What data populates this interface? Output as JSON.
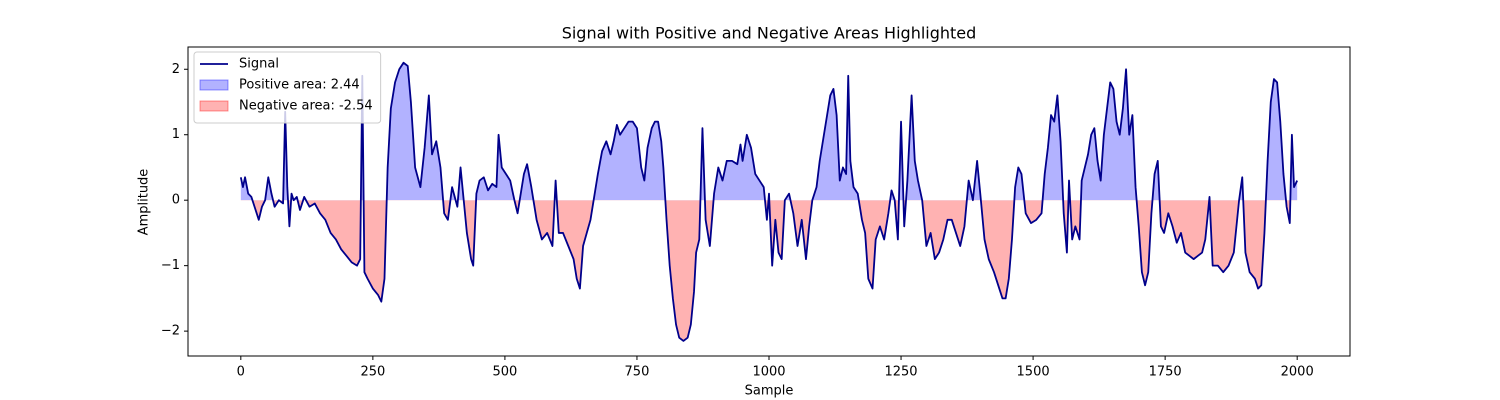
{
  "chart_data": {
    "type": "line",
    "title": "Signal with Positive and Negative Areas Highlighted",
    "xlabel": "Sample",
    "ylabel": "Amplitude",
    "x": [
      0,
      4,
      8,
      14,
      20,
      28,
      34,
      40,
      46,
      52,
      58,
      64,
      72,
      80,
      84,
      88,
      92,
      96,
      100,
      106,
      112,
      120,
      130,
      140,
      150,
      160,
      170,
      180,
      190,
      200,
      210,
      220,
      226,
      230,
      234,
      240,
      250,
      260,
      266,
      272,
      278,
      284,
      292,
      300,
      308,
      316,
      322,
      330,
      340,
      348,
      356,
      362,
      370,
      378,
      385,
      392,
      400,
      410,
      416,
      422,
      428,
      436,
      440,
      446,
      452,
      460,
      468,
      476,
      484,
      488,
      494,
      502,
      510,
      518,
      524,
      530,
      536,
      542,
      550,
      560,
      570,
      580,
      590,
      596,
      602,
      610,
      620,
      630,
      636,
      642,
      648,
      655,
      662,
      668,
      676,
      684,
      692,
      700,
      706,
      712,
      718,
      726,
      734,
      742,
      750,
      758,
      764,
      770,
      778,
      784,
      790,
      796,
      800,
      806,
      812,
      818,
      824,
      830,
      838,
      846,
      852,
      858,
      862,
      868,
      874,
      880,
      888,
      896,
      904,
      912,
      920,
      930,
      940,
      946,
      950,
      958,
      966,
      974,
      982,
      990,
      996,
      1000,
      1006,
      1012,
      1018,
      1024,
      1030,
      1038,
      1046,
      1054,
      1062,
      1070,
      1076,
      1082,
      1090,
      1096,
      1102,
      1110,
      1116,
      1122,
      1128,
      1134,
      1140,
      1146,
      1150,
      1154,
      1160,
      1168,
      1176,
      1182,
      1188,
      1196,
      1202,
      1210,
      1218,
      1226,
      1232,
      1238,
      1244,
      1250,
      1256,
      1262,
      1270,
      1276,
      1282,
      1290,
      1298,
      1306,
      1314,
      1322,
      1330,
      1338,
      1346,
      1354,
      1362,
      1370,
      1378,
      1386,
      1394,
      1400,
      1408,
      1416,
      1426,
      1434,
      1442,
      1448,
      1454,
      1460,
      1466,
      1472,
      1478,
      1486,
      1496,
      1506,
      1516,
      1522,
      1528,
      1534,
      1540,
      1546,
      1552,
      1558,
      1564,
      1568,
      1574,
      1580,
      1588,
      1592,
      1598,
      1604,
      1610,
      1616,
      1622,
      1628,
      1634,
      1640,
      1646,
      1652,
      1658,
      1664,
      1670,
      1676,
      1682,
      1688,
      1694,
      1700,
      1706,
      1712,
      1718,
      1724,
      1730,
      1736,
      1742,
      1748,
      1756,
      1764,
      1772,
      1780,
      1788,
      1796,
      1804,
      1812,
      1820,
      1826,
      1834,
      1840,
      1850,
      1860,
      1870,
      1880,
      1890,
      1896,
      1902,
      1910,
      1920,
      1926,
      1932,
      1938,
      1944,
      1950,
      1956,
      1962,
      1968,
      1974,
      1980,
      1986,
      1990,
      1994,
      2000
    ],
    "series": [
      {
        "name": "Signal",
        "color": "#00008b",
        "values": [
          0.35,
          0.2,
          0.35,
          0.1,
          0.05,
          -0.15,
          -0.3,
          -0.1,
          0,
          0.35,
          0.1,
          -0.1,
          0,
          -0.05,
          1.35,
          0.2,
          -0.4,
          0.1,
          0,
          0.05,
          -0.15,
          0.05,
          -0.1,
          -0.05,
          -0.2,
          -0.3,
          -0.5,
          -0.6,
          -0.75,
          -0.85,
          -0.95,
          -1,
          -0.9,
          1.9,
          -1.1,
          -1.2,
          -1.35,
          -1.45,
          -1.55,
          -1.2,
          0.5,
          1.4,
          1.8,
          2,
          2.1,
          2.05,
          1.5,
          0.5,
          0.2,
          0.8,
          1.6,
          0.7,
          0.9,
          0.5,
          -0.2,
          -0.3,
          0.2,
          -0.1,
          0.5,
          0,
          -0.5,
          -0.9,
          -1,
          0.1,
          0.3,
          0.35,
          0.15,
          0.25,
          0.2,
          1,
          0.5,
          0.4,
          0.3,
          0,
          -0.2,
          0.1,
          0.4,
          0.55,
          0.2,
          -0.3,
          -0.6,
          -0.5,
          -0.7,
          0.3,
          -0.5,
          -0.5,
          -0.7,
          -0.9,
          -1.2,
          -1.35,
          -0.7,
          -0.5,
          -0.3,
          0,
          0.4,
          0.75,
          0.9,
          0.7,
          0.9,
          1.15,
          1,
          1.1,
          1.2,
          1.2,
          1.1,
          0.5,
          0.3,
          0.8,
          1.1,
          1.2,
          1.2,
          0.9,
          0.5,
          -0.3,
          -1,
          -1.5,
          -1.9,
          -2.1,
          -2.15,
          -2.1,
          -1.9,
          -1.4,
          -0.8,
          -0.6,
          1.1,
          -0.3,
          -0.7,
          0.1,
          0.5,
          0.3,
          0.6,
          0.6,
          0.55,
          0.85,
          0.6,
          1,
          0.8,
          0.4,
          0.3,
          0.2,
          -0.3,
          0.1,
          -1,
          -0.3,
          -0.8,
          -0.9,
          0,
          0.1,
          -0.2,
          -0.7,
          -0.3,
          -0.9,
          -0.4,
          0,
          0.2,
          0.6,
          0.9,
          1.3,
          1.6,
          1.7,
          1.3,
          0.3,
          0.5,
          0.4,
          1.9,
          0.6,
          0.2,
          0.1,
          -0.3,
          -0.5,
          -1.2,
          -1.35,
          -0.6,
          -0.4,
          -0.6,
          -0.2,
          0.15,
          0,
          -0.6,
          1.2,
          -0.4,
          0.3,
          1.6,
          0.6,
          0.3,
          0,
          -0.7,
          -0.5,
          -0.9,
          -0.8,
          -0.6,
          -0.3,
          -0.3,
          -0.5,
          -0.7,
          -0.4,
          0.3,
          0,
          0.6,
          0.1,
          -0.6,
          -0.9,
          -1.1,
          -1.3,
          -1.5,
          -1.5,
          -1.2,
          -0.6,
          0.2,
          0.5,
          0.4,
          -0.2,
          -0.35,
          -0.3,
          -0.2,
          0.4,
          0.8,
          1.3,
          1.2,
          1.6,
          0.9,
          -0.2,
          -0.8,
          0.3,
          -0.6,
          -0.4,
          -0.6,
          0.3,
          0.5,
          0.7,
          1,
          1.1,
          0.6,
          0.3,
          1,
          1.4,
          1.8,
          1.7,
          1.2,
          1,
          1.4,
          2,
          1,
          1.3,
          0.2,
          -0.4,
          -1.1,
          -1.3,
          -1.1,
          -0.2,
          0.4,
          0.6,
          -0.4,
          -0.5,
          -0.2,
          -0.4,
          -0.65,
          -0.5,
          -0.8,
          -0.85,
          -0.9,
          -0.85,
          -0.8,
          -0.6,
          0.05,
          -1,
          -1,
          -1.1,
          -1,
          -0.8,
          0,
          0.35,
          -0.8,
          -1.1,
          -1.2,
          -1.35,
          -1.3,
          -0.5,
          0.6,
          1.5,
          1.85,
          1.8,
          1.2,
          0.4,
          -0.1,
          -0.35,
          1,
          0.2,
          0.3
        ]
      }
    ],
    "fills": [
      {
        "name": "Positive area: 2.44",
        "color": "#0000ff",
        "alpha": 0.3,
        "side": "positive"
      },
      {
        "name": "Negative area: -2.54",
        "color": "#ff0000",
        "alpha": 0.3,
        "side": "negative"
      }
    ],
    "xlim": [
      -100,
      2100
    ],
    "ylim": [
      -2.38,
      2.34
    ],
    "xticks": [
      0,
      250,
      500,
      750,
      1000,
      1250,
      1500,
      1750,
      2000
    ],
    "yticks": [
      {
        "value": -2,
        "label": "−2"
      },
      {
        "value": -1,
        "label": "−1"
      },
      0,
      1,
      2
    ],
    "legend": "upper left"
  }
}
